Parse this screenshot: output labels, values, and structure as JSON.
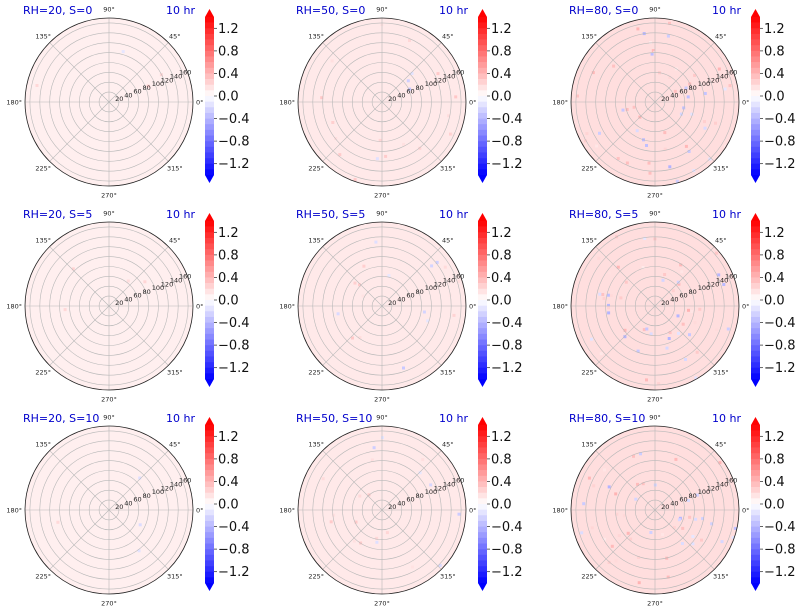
{
  "chart_data": [
    {
      "type": "heatmap",
      "projection": "polar",
      "title": "RH=20, S=0",
      "time_label": "10 hr",
      "rticks": [
        "20",
        "40",
        "60",
        "80",
        "100",
        "120",
        "140",
        "160"
      ],
      "rlim": [
        0,
        170
      ],
      "angle_ticks": [
        "0°",
        "45°",
        "90°",
        "135°",
        "180°",
        "225°",
        "270°",
        "315°"
      ],
      "colorbar": {
        "ticks": [
          "1.2",
          "0.8",
          "0.4",
          "0.0",
          "−0.4",
          "−0.8",
          "−1.2"
        ],
        "range": [
          -1.4,
          1.4
        ],
        "extend": "both",
        "cmap": "bwr"
      },
      "field_amplitude": 0.15,
      "speckle_count": 4
    },
    {
      "type": "heatmap",
      "projection": "polar",
      "title": "RH=50, S=0",
      "time_label": "10 hr",
      "rticks": [
        "20",
        "40",
        "60",
        "80",
        "100",
        "120",
        "140",
        "160"
      ],
      "rlim": [
        0,
        170
      ],
      "angle_ticks": [
        "0°",
        "45°",
        "90°",
        "135°",
        "180°",
        "225°",
        "270°",
        "315°"
      ],
      "colorbar": {
        "ticks": [
          "1.2",
          "0.8",
          "0.4",
          "0.0",
          "−0.4",
          "−0.8",
          "−1.2"
        ],
        "range": [
          -1.4,
          1.4
        ],
        "extend": "both",
        "cmap": "bwr"
      },
      "field_amplitude": 0.2,
      "speckle_count": 22
    },
    {
      "type": "heatmap",
      "projection": "polar",
      "title": "RH=80, S=0",
      "time_label": "10 hr",
      "rticks": [
        "20",
        "40",
        "60",
        "80",
        "100",
        "120",
        "140",
        "160"
      ],
      "rlim": [
        0,
        170
      ],
      "angle_ticks": [
        "0°",
        "45°",
        "90°",
        "135°",
        "180°",
        "225°",
        "270°",
        "315°"
      ],
      "colorbar": {
        "ticks": [
          "1.2",
          "0.8",
          "0.4",
          "0.0",
          "−0.4",
          "−0.8",
          "−1.2"
        ],
        "range": [
          -1.4,
          1.4
        ],
        "extend": "both",
        "cmap": "bwr"
      },
      "field_amplitude": 0.3,
      "speckle_count": 60
    },
    {
      "type": "heatmap",
      "projection": "polar",
      "title": "RH=20, S=5",
      "time_label": "10 hr",
      "rticks": [
        "20",
        "40",
        "60",
        "80",
        "100",
        "120",
        "140",
        "160"
      ],
      "rlim": [
        0,
        170
      ],
      "angle_ticks": [
        "0°",
        "45°",
        "90°",
        "135°",
        "180°",
        "225°",
        "270°",
        "315°"
      ],
      "colorbar": {
        "ticks": [
          "1.2",
          "0.8",
          "0.4",
          "0.0",
          "−0.4",
          "−0.8",
          "−1.2"
        ],
        "range": [
          -1.4,
          1.4
        ],
        "extend": "both",
        "cmap": "bwr"
      },
      "field_amplitude": 0.15,
      "speckle_count": 4
    },
    {
      "type": "heatmap",
      "projection": "polar",
      "title": "RH=50, S=5",
      "time_label": "10 hr",
      "rticks": [
        "20",
        "40",
        "60",
        "80",
        "100",
        "120",
        "140",
        "160"
      ],
      "rlim": [
        0,
        170
      ],
      "angle_ticks": [
        "0°",
        "45°",
        "90°",
        "135°",
        "180°",
        "225°",
        "270°",
        "315°"
      ],
      "colorbar": {
        "ticks": [
          "1.2",
          "0.8",
          "0.4",
          "0.0",
          "−0.4",
          "−0.8",
          "−1.2"
        ],
        "range": [
          -1.4,
          1.4
        ],
        "extend": "both",
        "cmap": "bwr"
      },
      "field_amplitude": 0.2,
      "speckle_count": 20
    },
    {
      "type": "heatmap",
      "projection": "polar",
      "title": "RH=80, S=5",
      "time_label": "10 hr",
      "rticks": [
        "20",
        "40",
        "60",
        "80",
        "100",
        "120",
        "140",
        "160"
      ],
      "rlim": [
        0,
        170
      ],
      "angle_ticks": [
        "0°",
        "45°",
        "90°",
        "135°",
        "180°",
        "225°",
        "270°",
        "315°"
      ],
      "colorbar": {
        "ticks": [
          "1.2",
          "0.8",
          "0.4",
          "0.0",
          "−0.4",
          "−0.8",
          "−1.2"
        ],
        "range": [
          -1.4,
          1.4
        ],
        "extend": "both",
        "cmap": "bwr"
      },
      "field_amplitude": 0.3,
      "speckle_count": 55
    },
    {
      "type": "heatmap",
      "projection": "polar",
      "title": "RH=20, S=10",
      "time_label": "10 hr",
      "rticks": [
        "20",
        "40",
        "60",
        "80",
        "100",
        "120",
        "140",
        "160"
      ],
      "rlim": [
        0,
        170
      ],
      "angle_ticks": [
        "0°",
        "45°",
        "90°",
        "135°",
        "180°",
        "225°",
        "270°",
        "315°"
      ],
      "colorbar": {
        "ticks": [
          "1.2",
          "0.8",
          "0.4",
          "0.0",
          "−0.4",
          "−0.8",
          "−1.2"
        ],
        "range": [
          -1.4,
          1.4
        ],
        "extend": "both",
        "cmap": "bwr"
      },
      "field_amplitude": 0.15,
      "speckle_count": 4
    },
    {
      "type": "heatmap",
      "projection": "polar",
      "title": "RH=50, S=10",
      "time_label": "10 hr",
      "rticks": [
        "20",
        "40",
        "60",
        "80",
        "100",
        "120",
        "140",
        "160"
      ],
      "rlim": [
        0,
        170
      ],
      "angle_ticks": [
        "0°",
        "45°",
        "90°",
        "135°",
        "180°",
        "225°",
        "270°",
        "315°"
      ],
      "colorbar": {
        "ticks": [
          "1.2",
          "0.8",
          "0.4",
          "0.0",
          "−0.4",
          "−0.8",
          "−1.2"
        ],
        "range": [
          -1.4,
          1.4
        ],
        "extend": "both",
        "cmap": "bwr"
      },
      "field_amplitude": 0.2,
      "speckle_count": 20
    },
    {
      "type": "heatmap",
      "projection": "polar",
      "title": "RH=80, S=10",
      "time_label": "10 hr",
      "rticks": [
        "20",
        "40",
        "60",
        "80",
        "100",
        "120",
        "140",
        "160"
      ],
      "rlim": [
        0,
        170
      ],
      "angle_ticks": [
        "0°",
        "45°",
        "90°",
        "135°",
        "180°",
        "225°",
        "270°",
        "315°"
      ],
      "colorbar": {
        "ticks": [
          "1.2",
          "0.8",
          "0.4",
          "0.0",
          "−0.4",
          "−0.8",
          "−1.2"
        ],
        "range": [
          -1.4,
          1.4
        ],
        "extend": "both",
        "cmap": "bwr"
      },
      "field_amplitude": 0.3,
      "speckle_count": 55
    }
  ]
}
